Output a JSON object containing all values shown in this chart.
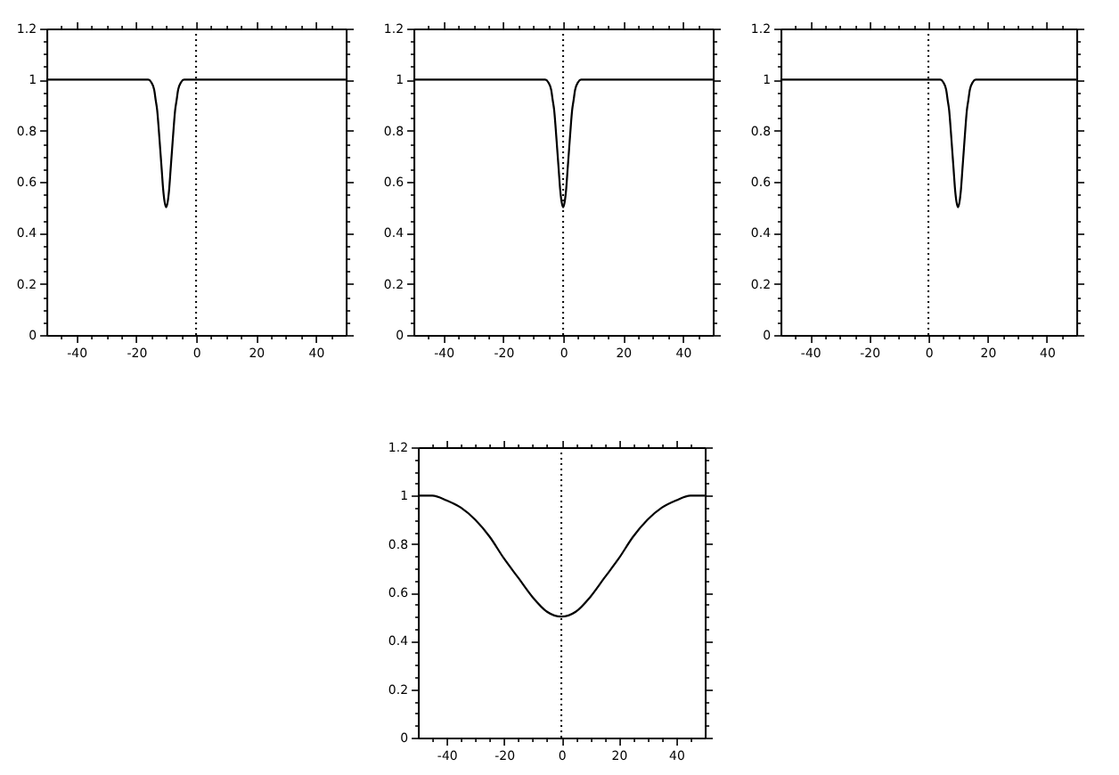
{
  "chart_data": [
    {
      "type": "line",
      "x": [
        -50,
        -17,
        -16,
        -15,
        -14,
        -13.5,
        -13,
        -12.5,
        -12,
        -11.5,
        -11,
        -10.5,
        -10,
        -9.5,
        -9,
        -8.5,
        -8,
        -7.5,
        -7,
        -6.5,
        -6,
        -5,
        -4,
        -3,
        50
      ],
      "series": [
        {
          "color": "#000000",
          "values": [
            1,
            1,
            1,
            0.99,
            0.96,
            0.92,
            0.88,
            0.81,
            0.73,
            0.65,
            0.57,
            0.52,
            0.5,
            0.52,
            0.57,
            0.65,
            0.73,
            0.81,
            0.88,
            0.92,
            0.96,
            0.99,
            1,
            1,
            1
          ]
        }
      ],
      "xlim": [
        -50,
        50
      ],
      "ylim": [
        0,
        1.2
      ],
      "xticks": [
        {
          "value": -45,
          "label": null
        },
        -40,
        {
          "value": -35,
          "label": null
        },
        {
          "value": -30,
          "label": null
        },
        {
          "value": -25,
          "label": null
        },
        -20,
        {
          "value": -15,
          "label": null
        },
        {
          "value": -10,
          "label": null
        },
        {
          "value": -5,
          "label": null
        },
        0,
        {
          "value": 5,
          "label": null
        },
        {
          "value": 10,
          "label": null
        },
        {
          "value": 15,
          "label": null
        },
        20,
        {
          "value": 25,
          "label": null
        },
        {
          "value": 30,
          "label": null
        },
        {
          "value": 35,
          "label": null
        },
        40,
        {
          "value": 45,
          "label": null
        }
      ],
      "yticks": [
        0,
        {
          "value": 0.05,
          "label": null
        },
        {
          "value": 0.1,
          "label": null
        },
        {
          "value": 0.15,
          "label": null
        },
        0.2,
        {
          "value": 0.25,
          "label": null
        },
        {
          "value": 0.3,
          "label": null
        },
        {
          "value": 0.35,
          "label": null
        },
        0.4,
        {
          "value": 0.45,
          "label": null
        },
        {
          "value": 0.5,
          "label": null
        },
        {
          "value": 0.55,
          "label": null
        },
        0.6,
        {
          "value": 0.65,
          "label": null
        },
        {
          "value": 0.7,
          "label": null
        },
        {
          "value": 0.75,
          "label": null
        },
        0.8,
        {
          "value": 0.85,
          "label": null
        },
        {
          "value": 0.9,
          "label": null
        },
        {
          "value": 0.95,
          "label": null
        },
        1,
        {
          "value": 1.05,
          "label": null
        },
        {
          "value": 1.1,
          "label": null
        },
        {
          "value": 1.15,
          "label": null
        },
        1.2
      ],
      "ref_lines": [
        {
          "axis": "x",
          "value": 0,
          "line_style": "dotted",
          "color": "#000000"
        }
      ],
      "grid": false,
      "marker": "none",
      "line_style": "solid"
    },
    {
      "type": "line",
      "x": [
        -50,
        -7,
        -6,
        -5,
        -4,
        -3.5,
        -3,
        -2.5,
        -2,
        -1.5,
        -1,
        -0.5,
        0,
        0.5,
        1,
        1.5,
        2,
        2.5,
        3,
        3.5,
        4,
        5,
        6,
        7,
        50
      ],
      "series": [
        {
          "color": "#000000",
          "values": [
            1,
            1,
            1,
            0.99,
            0.96,
            0.92,
            0.88,
            0.81,
            0.73,
            0.65,
            0.57,
            0.52,
            0.5,
            0.52,
            0.57,
            0.65,
            0.73,
            0.81,
            0.88,
            0.92,
            0.96,
            0.99,
            1,
            1,
            1
          ]
        }
      ],
      "xlim": [
        -50,
        50
      ],
      "ylim": [
        0,
        1.2
      ],
      "xticks": [
        {
          "value": -45,
          "label": null
        },
        -40,
        {
          "value": -35,
          "label": null
        },
        {
          "value": -30,
          "label": null
        },
        {
          "value": -25,
          "label": null
        },
        -20,
        {
          "value": -15,
          "label": null
        },
        {
          "value": -10,
          "label": null
        },
        {
          "value": -5,
          "label": null
        },
        0,
        {
          "value": 5,
          "label": null
        },
        {
          "value": 10,
          "label": null
        },
        {
          "value": 15,
          "label": null
        },
        20,
        {
          "value": 25,
          "label": null
        },
        {
          "value": 30,
          "label": null
        },
        {
          "value": 35,
          "label": null
        },
        40,
        {
          "value": 45,
          "label": null
        }
      ],
      "yticks": [
        0,
        {
          "value": 0.05,
          "label": null
        },
        {
          "value": 0.1,
          "label": null
        },
        {
          "value": 0.15,
          "label": null
        },
        0.2,
        {
          "value": 0.25,
          "label": null
        },
        {
          "value": 0.3,
          "label": null
        },
        {
          "value": 0.35,
          "label": null
        },
        0.4,
        {
          "value": 0.45,
          "label": null
        },
        {
          "value": 0.5,
          "label": null
        },
        {
          "value": 0.55,
          "label": null
        },
        0.6,
        {
          "value": 0.65,
          "label": null
        },
        {
          "value": 0.7,
          "label": null
        },
        {
          "value": 0.75,
          "label": null
        },
        0.8,
        {
          "value": 0.85,
          "label": null
        },
        {
          "value": 0.9,
          "label": null
        },
        {
          "value": 0.95,
          "label": null
        },
        1,
        {
          "value": 1.05,
          "label": null
        },
        {
          "value": 1.1,
          "label": null
        },
        {
          "value": 1.15,
          "label": null
        },
        1.2
      ],
      "ref_lines": [
        {
          "axis": "x",
          "value": 0,
          "line_style": "dotted",
          "color": "#000000"
        }
      ],
      "grid": false,
      "marker": "none",
      "line_style": "solid"
    },
    {
      "type": "line",
      "x": [
        -50,
        3,
        4,
        5,
        6,
        6.5,
        7,
        7.5,
        8,
        8.5,
        9,
        9.5,
        10,
        10.5,
        11,
        11.5,
        12,
        12.5,
        13,
        13.5,
        14,
        15,
        16,
        17,
        50
      ],
      "series": [
        {
          "color": "#000000",
          "values": [
            1,
            1,
            1,
            0.99,
            0.96,
            0.92,
            0.88,
            0.81,
            0.73,
            0.65,
            0.57,
            0.52,
            0.5,
            0.52,
            0.57,
            0.65,
            0.73,
            0.81,
            0.88,
            0.92,
            0.96,
            0.99,
            1,
            1,
            1
          ]
        }
      ],
      "xlim": [
        -50,
        50
      ],
      "ylim": [
        0,
        1.2
      ],
      "xticks": [
        {
          "value": -45,
          "label": null
        },
        -40,
        {
          "value": -35,
          "label": null
        },
        {
          "value": -30,
          "label": null
        },
        {
          "value": -25,
          "label": null
        },
        -20,
        {
          "value": -15,
          "label": null
        },
        {
          "value": -10,
          "label": null
        },
        {
          "value": -5,
          "label": null
        },
        0,
        {
          "value": 5,
          "label": null
        },
        {
          "value": 10,
          "label": null
        },
        {
          "value": 15,
          "label": null
        },
        20,
        {
          "value": 25,
          "label": null
        },
        {
          "value": 30,
          "label": null
        },
        {
          "value": 35,
          "label": null
        },
        40,
        {
          "value": 45,
          "label": null
        }
      ],
      "yticks": [
        0,
        {
          "value": 0.05,
          "label": null
        },
        {
          "value": 0.1,
          "label": null
        },
        {
          "value": 0.15,
          "label": null
        },
        0.2,
        {
          "value": 0.25,
          "label": null
        },
        {
          "value": 0.3,
          "label": null
        },
        {
          "value": 0.35,
          "label": null
        },
        0.4,
        {
          "value": 0.45,
          "label": null
        },
        {
          "value": 0.5,
          "label": null
        },
        {
          "value": 0.55,
          "label": null
        },
        0.6,
        {
          "value": 0.65,
          "label": null
        },
        {
          "value": 0.7,
          "label": null
        },
        {
          "value": 0.75,
          "label": null
        },
        0.8,
        {
          "value": 0.85,
          "label": null
        },
        {
          "value": 0.9,
          "label": null
        },
        {
          "value": 0.95,
          "label": null
        },
        1,
        {
          "value": 1.05,
          "label": null
        },
        {
          "value": 1.1,
          "label": null
        },
        {
          "value": 1.15,
          "label": null
        },
        1.2
      ],
      "ref_lines": [
        {
          "axis": "x",
          "value": 0,
          "line_style": "dotted",
          "color": "#000000"
        }
      ],
      "grid": false,
      "marker": "none",
      "line_style": "solid"
    },
    {
      "type": "line",
      "x": [
        -50,
        -45,
        -40,
        -35,
        -30,
        -25,
        -20,
        -15,
        -10,
        -5,
        0,
        5,
        10,
        15,
        20,
        25,
        30,
        35,
        40,
        45,
        50
      ],
      "series": [
        {
          "color": "#000000",
          "values": [
            1,
            1,
            0.98,
            0.95,
            0.9,
            0.83,
            0.74,
            0.66,
            0.58,
            0.52,
            0.5,
            0.52,
            0.58,
            0.66,
            0.74,
            0.83,
            0.9,
            0.95,
            0.98,
            1,
            1
          ]
        }
      ],
      "xlim": [
        -50,
        50
      ],
      "ylim": [
        0,
        1.2
      ],
      "xticks": [
        {
          "value": -45,
          "label": null
        },
        -40,
        {
          "value": -35,
          "label": null
        },
        {
          "value": -30,
          "label": null
        },
        {
          "value": -25,
          "label": null
        },
        -20,
        {
          "value": -15,
          "label": null
        },
        {
          "value": -10,
          "label": null
        },
        {
          "value": -5,
          "label": null
        },
        0,
        {
          "value": 5,
          "label": null
        },
        {
          "value": 10,
          "label": null
        },
        {
          "value": 15,
          "label": null
        },
        20,
        {
          "value": 25,
          "label": null
        },
        {
          "value": 30,
          "label": null
        },
        {
          "value": 35,
          "label": null
        },
        40,
        {
          "value": 45,
          "label": null
        }
      ],
      "yticks": [
        0,
        {
          "value": 0.05,
          "label": null
        },
        {
          "value": 0.1,
          "label": null
        },
        {
          "value": 0.15,
          "label": null
        },
        0.2,
        {
          "value": 0.25,
          "label": null
        },
        {
          "value": 0.3,
          "label": null
        },
        {
          "value": 0.35,
          "label": null
        },
        0.4,
        {
          "value": 0.45,
          "label": null
        },
        {
          "value": 0.5,
          "label": null
        },
        {
          "value": 0.55,
          "label": null
        },
        0.6,
        {
          "value": 0.65,
          "label": null
        },
        {
          "value": 0.7,
          "label": null
        },
        {
          "value": 0.75,
          "label": null
        },
        0.8,
        {
          "value": 0.85,
          "label": null
        },
        {
          "value": 0.9,
          "label": null
        },
        {
          "value": 0.95,
          "label": null
        },
        1,
        {
          "value": 1.05,
          "label": null
        },
        {
          "value": 1.1,
          "label": null
        },
        {
          "value": 1.15,
          "label": null
        },
        1.2
      ],
      "ref_lines": [
        {
          "axis": "x",
          "value": 0,
          "line_style": "dotted",
          "color": "#000000"
        }
      ],
      "grid": false,
      "marker": "none",
      "line_style": "solid"
    }
  ]
}
